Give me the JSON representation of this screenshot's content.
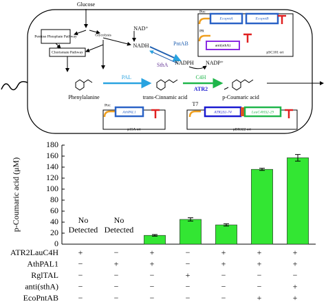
{
  "diagram": {
    "glucose": "Glucose",
    "pentose": "Pentose Phosphate Pathway",
    "glycolysis": "Glycolysis",
    "chorismate": "Chorismate Pathway",
    "nad": "NAD⁺",
    "nadh": "NADH",
    "pntab": "PntAB",
    "stha": "SthA",
    "nadph": "NADPH",
    "nadp": "NADP⁺",
    "pal": "PAL",
    "c4h": "C4H",
    "atr2": "ATR2",
    "phenylalanine": "Phenylalanine",
    "cinnamic": "trans-Cinnamic acid",
    "coumaric": "p-Coumaric acid",
    "plasmid1": {
      "promoter1": "Ptrc",
      "gene1": "EcopntA",
      "gene2": "EcopntB",
      "promoter2": "PR",
      "gene3": "anti(sthA)",
      "ori": "pSC101 ori"
    },
    "plasmid2": {
      "promoter": "Ptrc",
      "gene": "AthPAL1",
      "ori": "p15A ori"
    },
    "plasmid3": {
      "promoter": "T7",
      "gene1": "ATR2Δ1-74",
      "gene2": "LauC4HΔ2-29",
      "ori": "pBR322 ori"
    }
  },
  "chart_data": {
    "type": "bar",
    "y_label": "p-Coumaric acid (μM)",
    "categories": [
      null,
      null,
      null,
      null,
      null,
      null,
      null
    ],
    "values": [
      null,
      null,
      16,
      45,
      35,
      136,
      157
    ],
    "value_labels": [
      "No Detected",
      "No Detected",
      null,
      null,
      null,
      null,
      null
    ],
    "errors": [
      null,
      null,
      1.5,
      3,
      2,
      2,
      6
    ],
    "color": "#33e633",
    "ylim": [
      0,
      180
    ],
    "yticks": [
      0,
      20,
      40,
      60,
      80,
      100,
      120,
      140,
      160,
      180
    ]
  },
  "condition_table": {
    "rows": [
      {
        "label": "ATR2LauC4H",
        "cells": [
          "+",
          "−",
          "+",
          "−",
          "+",
          "+",
          "+"
        ]
      },
      {
        "label": "AthPAL1",
        "cells": [
          "−",
          "+",
          "+",
          "−",
          "+",
          "+",
          "+"
        ]
      },
      {
        "label": "RglTAL",
        "cells": [
          "−",
          "−",
          "−",
          "+",
          "−",
          "−",
          "−"
        ]
      },
      {
        "label": "anti(sthA)",
        "cells": [
          "−",
          "−",
          "−",
          "−",
          "−",
          "−",
          "+"
        ]
      },
      {
        "label": "EcoPntAB",
        "cells": [
          "−",
          "−",
          "−",
          "−",
          "−",
          "+",
          "+"
        ]
      }
    ]
  }
}
